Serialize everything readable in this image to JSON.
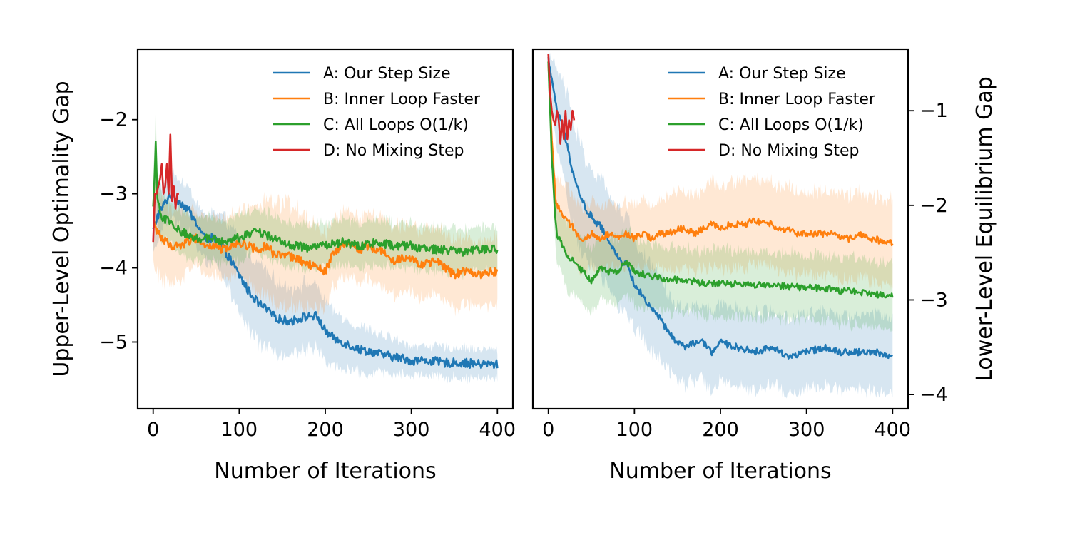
{
  "chart_data": [
    {
      "type": "line",
      "xlabel": "Number of Iterations",
      "ylabel": "Upper-Level Optimality Gap",
      "xlim": [
        -18,
        418
      ],
      "ylim": [
        -5.9,
        -1.05
      ],
      "xticks": [
        0,
        100,
        200,
        300,
        400
      ],
      "yticks": [
        -5,
        -4,
        -3,
        -2
      ],
      "ytick_labels": [
        "−5",
        "−4",
        "−3",
        "−2"
      ],
      "xtick_labels": [
        "0",
        "100",
        "200",
        "300",
        "400"
      ],
      "legend": "top-right",
      "series": [
        {
          "name": "A: Our Step Size",
          "color": "#1f77b4",
          "x": [
            0,
            5,
            10,
            20,
            30,
            40,
            50,
            60,
            70,
            80,
            90,
            100,
            110,
            120,
            130,
            140,
            150,
            160,
            170,
            180,
            190,
            200,
            210,
            220,
            230,
            240,
            250,
            260,
            270,
            280,
            290,
            300,
            320,
            340,
            360,
            380,
            400
          ],
          "y": [
            -3.5,
            -3.3,
            -3.2,
            -3.0,
            -3.1,
            -3.2,
            -3.4,
            -3.6,
            -3.6,
            -3.7,
            -3.9,
            -4.1,
            -4.3,
            -4.45,
            -4.55,
            -4.65,
            -4.7,
            -4.72,
            -4.68,
            -4.65,
            -4.65,
            -4.85,
            -4.95,
            -5.0,
            -5.05,
            -5.1,
            -5.12,
            -5.15,
            -5.18,
            -5.2,
            -5.22,
            -5.25,
            -5.25,
            -5.28,
            -5.28,
            -5.3,
            -5.3
          ],
          "band_width": [
            0.35,
            0.35,
            0.3,
            0.3,
            0.3,
            0.3,
            0.3,
            0.3,
            0.35,
            0.4,
            0.45,
            0.5,
            0.5,
            0.55,
            0.55,
            0.5,
            0.45,
            0.45,
            0.45,
            0.45,
            0.4,
            0.4,
            0.35,
            0.35,
            0.3,
            0.3,
            0.3,
            0.25,
            0.25,
            0.25,
            0.2,
            0.2,
            0.2,
            0.2,
            0.2,
            0.2,
            0.2
          ]
        },
        {
          "name": "B: Inner Loop Faster",
          "color": "#ff7f0e",
          "x": [
            0,
            5,
            10,
            20,
            30,
            40,
            50,
            60,
            70,
            80,
            90,
            100,
            110,
            120,
            130,
            140,
            150,
            160,
            170,
            180,
            190,
            200,
            210,
            220,
            230,
            240,
            250,
            260,
            270,
            280,
            290,
            300,
            310,
            320,
            330,
            340,
            350,
            360,
            370,
            380,
            390,
            400
          ],
          "y": [
            -3.4,
            -3.5,
            -3.6,
            -3.7,
            -3.7,
            -3.65,
            -3.6,
            -3.7,
            -3.7,
            -3.75,
            -3.7,
            -3.65,
            -3.7,
            -3.75,
            -3.7,
            -3.8,
            -3.85,
            -3.85,
            -3.9,
            -3.95,
            -4.0,
            -4.05,
            -3.8,
            -3.7,
            -3.7,
            -3.75,
            -3.7,
            -3.75,
            -3.8,
            -3.9,
            -3.85,
            -3.85,
            -3.95,
            -3.95,
            -3.9,
            -4.0,
            -4.1,
            -4.05,
            -4.05,
            -4.1,
            -4.05,
            -4.05
          ],
          "band_width": [
            0.6,
            0.6,
            0.55,
            0.5,
            0.45,
            0.4,
            0.4,
            0.4,
            0.4,
            0.4,
            0.4,
            0.45,
            0.5,
            0.6,
            0.6,
            0.65,
            0.7,
            0.7,
            0.65,
            0.6,
            0.55,
            0.5,
            0.45,
            0.45,
            0.45,
            0.45,
            0.45,
            0.45,
            0.45,
            0.45,
            0.45,
            0.45,
            0.45,
            0.45,
            0.45,
            0.45,
            0.45,
            0.45,
            0.45,
            0.45,
            0.45,
            0.45
          ]
        },
        {
          "name": "C: All Loops O(1/k)",
          "color": "#2ca02c",
          "x": [
            0,
            3,
            5,
            10,
            20,
            30,
            40,
            50,
            60,
            70,
            80,
            90,
            100,
            110,
            120,
            130,
            140,
            150,
            160,
            170,
            180,
            190,
            200,
            220,
            240,
            260,
            280,
            300,
            320,
            340,
            360,
            380,
            400
          ],
          "y": [
            -3.2,
            -2.35,
            -3.1,
            -3.3,
            -3.4,
            -3.5,
            -3.55,
            -3.6,
            -3.6,
            -3.6,
            -3.65,
            -3.6,
            -3.6,
            -3.55,
            -3.5,
            -3.55,
            -3.6,
            -3.65,
            -3.7,
            -3.7,
            -3.75,
            -3.7,
            -3.7,
            -3.65,
            -3.7,
            -3.65,
            -3.7,
            -3.7,
            -3.75,
            -3.75,
            -3.8,
            -3.75,
            -3.75
          ],
          "band_width": [
            0.4,
            0.4,
            0.35,
            0.3,
            0.3,
            0.3,
            0.3,
            0.3,
            0.3,
            0.3,
            0.3,
            0.3,
            0.3,
            0.3,
            0.3,
            0.3,
            0.3,
            0.3,
            0.3,
            0.3,
            0.3,
            0.3,
            0.3,
            0.3,
            0.3,
            0.3,
            0.3,
            0.3,
            0.3,
            0.3,
            0.3,
            0.3,
            0.3
          ]
        },
        {
          "name": "D: No Mixing Step",
          "color": "#d62728",
          "x": [
            0,
            2,
            4,
            6,
            8,
            10,
            12,
            14,
            16,
            18,
            20,
            22,
            24,
            26,
            28,
            30
          ],
          "y": [
            -3.65,
            -3.0,
            -3.0,
            -2.9,
            -2.8,
            -2.6,
            -3.0,
            -2.9,
            -2.6,
            -3.0,
            -2.2,
            -3.1,
            -2.9,
            -3.2,
            -3.0,
            -3.0
          ],
          "band_width": []
        }
      ]
    },
    {
      "type": "line",
      "xlabel": "Number of Iterations",
      "ylabel": "Lower-Level Equilibrium Gap",
      "xlim": [
        -18,
        418
      ],
      "ylim": [
        -4.15,
        -0.35
      ],
      "xticks": [
        0,
        100,
        200,
        300,
        400
      ],
      "yticks": [
        -4,
        -3,
        -2,
        -1
      ],
      "ytick_labels": [
        "−4",
        "−3",
        "−2",
        "−1"
      ],
      "xtick_labels": [
        "0",
        "100",
        "200",
        "300",
        "400"
      ],
      "legend": "top-right",
      "series": [
        {
          "name": "A: Our Step Size",
          "color": "#1f77b4",
          "x": [
            0,
            3,
            6,
            10,
            15,
            20,
            25,
            30,
            35,
            40,
            45,
            50,
            55,
            60,
            65,
            70,
            75,
            80,
            85,
            90,
            95,
            100,
            105,
            110,
            115,
            120,
            130,
            140,
            150,
            160,
            170,
            180,
            190,
            200,
            220,
            240,
            260,
            280,
            300,
            320,
            340,
            360,
            380,
            400
          ],
          "y": [
            -0.45,
            -0.6,
            -0.8,
            -1.0,
            -1.1,
            -1.3,
            -1.5,
            -1.7,
            -1.85,
            -1.95,
            -2.1,
            -2.1,
            -2.2,
            -2.2,
            -2.3,
            -2.35,
            -2.45,
            -2.55,
            -2.6,
            -2.6,
            -2.7,
            -2.85,
            -2.9,
            -2.95,
            -3.05,
            -3.1,
            -3.2,
            -3.35,
            -3.45,
            -3.5,
            -3.45,
            -3.45,
            -3.55,
            -3.45,
            -3.5,
            -3.55,
            -3.5,
            -3.6,
            -3.55,
            -3.5,
            -3.55,
            -3.55,
            -3.55,
            -3.6
          ],
          "band_width": [
            0.05,
            0.2,
            0.3,
            0.4,
            0.45,
            0.5,
            0.55,
            0.55,
            0.55,
            0.55,
            0.5,
            0.5,
            0.5,
            0.5,
            0.5,
            0.5,
            0.5,
            0.5,
            0.5,
            0.5,
            0.5,
            0.45,
            0.45,
            0.45,
            0.45,
            0.45,
            0.45,
            0.4,
            0.4,
            0.4,
            0.4,
            0.4,
            0.4,
            0.4,
            0.4,
            0.4,
            0.4,
            0.4,
            0.4,
            0.4,
            0.4,
            0.4,
            0.4,
            0.4
          ]
        },
        {
          "name": "B: Inner Loop Faster",
          "color": "#ff7f0e",
          "x": [
            0,
            2,
            4,
            6,
            8,
            10,
            20,
            30,
            40,
            50,
            60,
            70,
            80,
            90,
            100,
            110,
            120,
            130,
            140,
            150,
            160,
            170,
            180,
            190,
            200,
            210,
            220,
            230,
            240,
            250,
            260,
            270,
            280,
            290,
            300,
            310,
            320,
            330,
            340,
            350,
            360,
            370,
            380,
            390,
            400
          ],
          "y": [
            -0.5,
            -0.9,
            -1.3,
            -1.6,
            -1.9,
            -2.0,
            -2.15,
            -2.25,
            -2.4,
            -2.3,
            -2.35,
            -2.3,
            -2.35,
            -2.3,
            -2.35,
            -2.3,
            -2.35,
            -2.3,
            -2.3,
            -2.25,
            -2.25,
            -2.3,
            -2.25,
            -2.2,
            -2.25,
            -2.2,
            -2.2,
            -2.2,
            -2.15,
            -2.2,
            -2.2,
            -2.25,
            -2.25,
            -2.3,
            -2.3,
            -2.3,
            -2.3,
            -2.3,
            -2.35,
            -2.35,
            -2.3,
            -2.35,
            -2.35,
            -2.4,
            -2.4
          ],
          "band_width": [
            0.05,
            0.1,
            0.15,
            0.2,
            0.25,
            0.3,
            0.35,
            0.35,
            0.35,
            0.35,
            0.35,
            0.35,
            0.35,
            0.35,
            0.35,
            0.35,
            0.35,
            0.35,
            0.4,
            0.4,
            0.4,
            0.4,
            0.4,
            0.45,
            0.45,
            0.45,
            0.45,
            0.45,
            0.45,
            0.45,
            0.45,
            0.45,
            0.45,
            0.45,
            0.45,
            0.45,
            0.45,
            0.45,
            0.45,
            0.45,
            0.45,
            0.45,
            0.45,
            0.45,
            0.45
          ]
        },
        {
          "name": "C: All Loops O(1/k)",
          "color": "#2ca02c",
          "x": [
            0,
            2,
            4,
            6,
            8,
            10,
            15,
            20,
            30,
            40,
            50,
            60,
            70,
            80,
            90,
            100,
            120,
            140,
            160,
            180,
            200,
            220,
            240,
            260,
            280,
            300,
            320,
            340,
            360,
            380,
            400
          ],
          "y": [
            -0.5,
            -1.0,
            -1.5,
            -1.8,
            -2.1,
            -2.3,
            -2.4,
            -2.5,
            -2.6,
            -2.7,
            -2.8,
            -2.65,
            -2.7,
            -2.7,
            -2.6,
            -2.7,
            -2.75,
            -2.78,
            -2.8,
            -2.82,
            -2.83,
            -2.83,
            -2.84,
            -2.85,
            -2.86,
            -2.87,
            -2.88,
            -2.9,
            -2.92,
            -2.94,
            -2.95
          ],
          "band_width": [
            0.05,
            0.1,
            0.15,
            0.2,
            0.25,
            0.3,
            0.35,
            0.35,
            0.35,
            0.35,
            0.35,
            0.35,
            0.35,
            0.35,
            0.35,
            0.35,
            0.35,
            0.35,
            0.35,
            0.35,
            0.35,
            0.35,
            0.35,
            0.35,
            0.35,
            0.35,
            0.35,
            0.35,
            0.35,
            0.35,
            0.35
          ]
        },
        {
          "name": "D: No Mixing Step",
          "color": "#d62728",
          "x": [
            0,
            2,
            4,
            6,
            8,
            10,
            12,
            14,
            16,
            18,
            20,
            22,
            24,
            26,
            28,
            30
          ],
          "y": [
            -0.4,
            -0.8,
            -1.0,
            -1.1,
            -1.15,
            -1.0,
            -1.1,
            -1.35,
            -1.1,
            -1.3,
            -1.0,
            -1.3,
            -1.1,
            -1.2,
            -1.0,
            -1.1
          ],
          "band_width": []
        }
      ]
    }
  ]
}
